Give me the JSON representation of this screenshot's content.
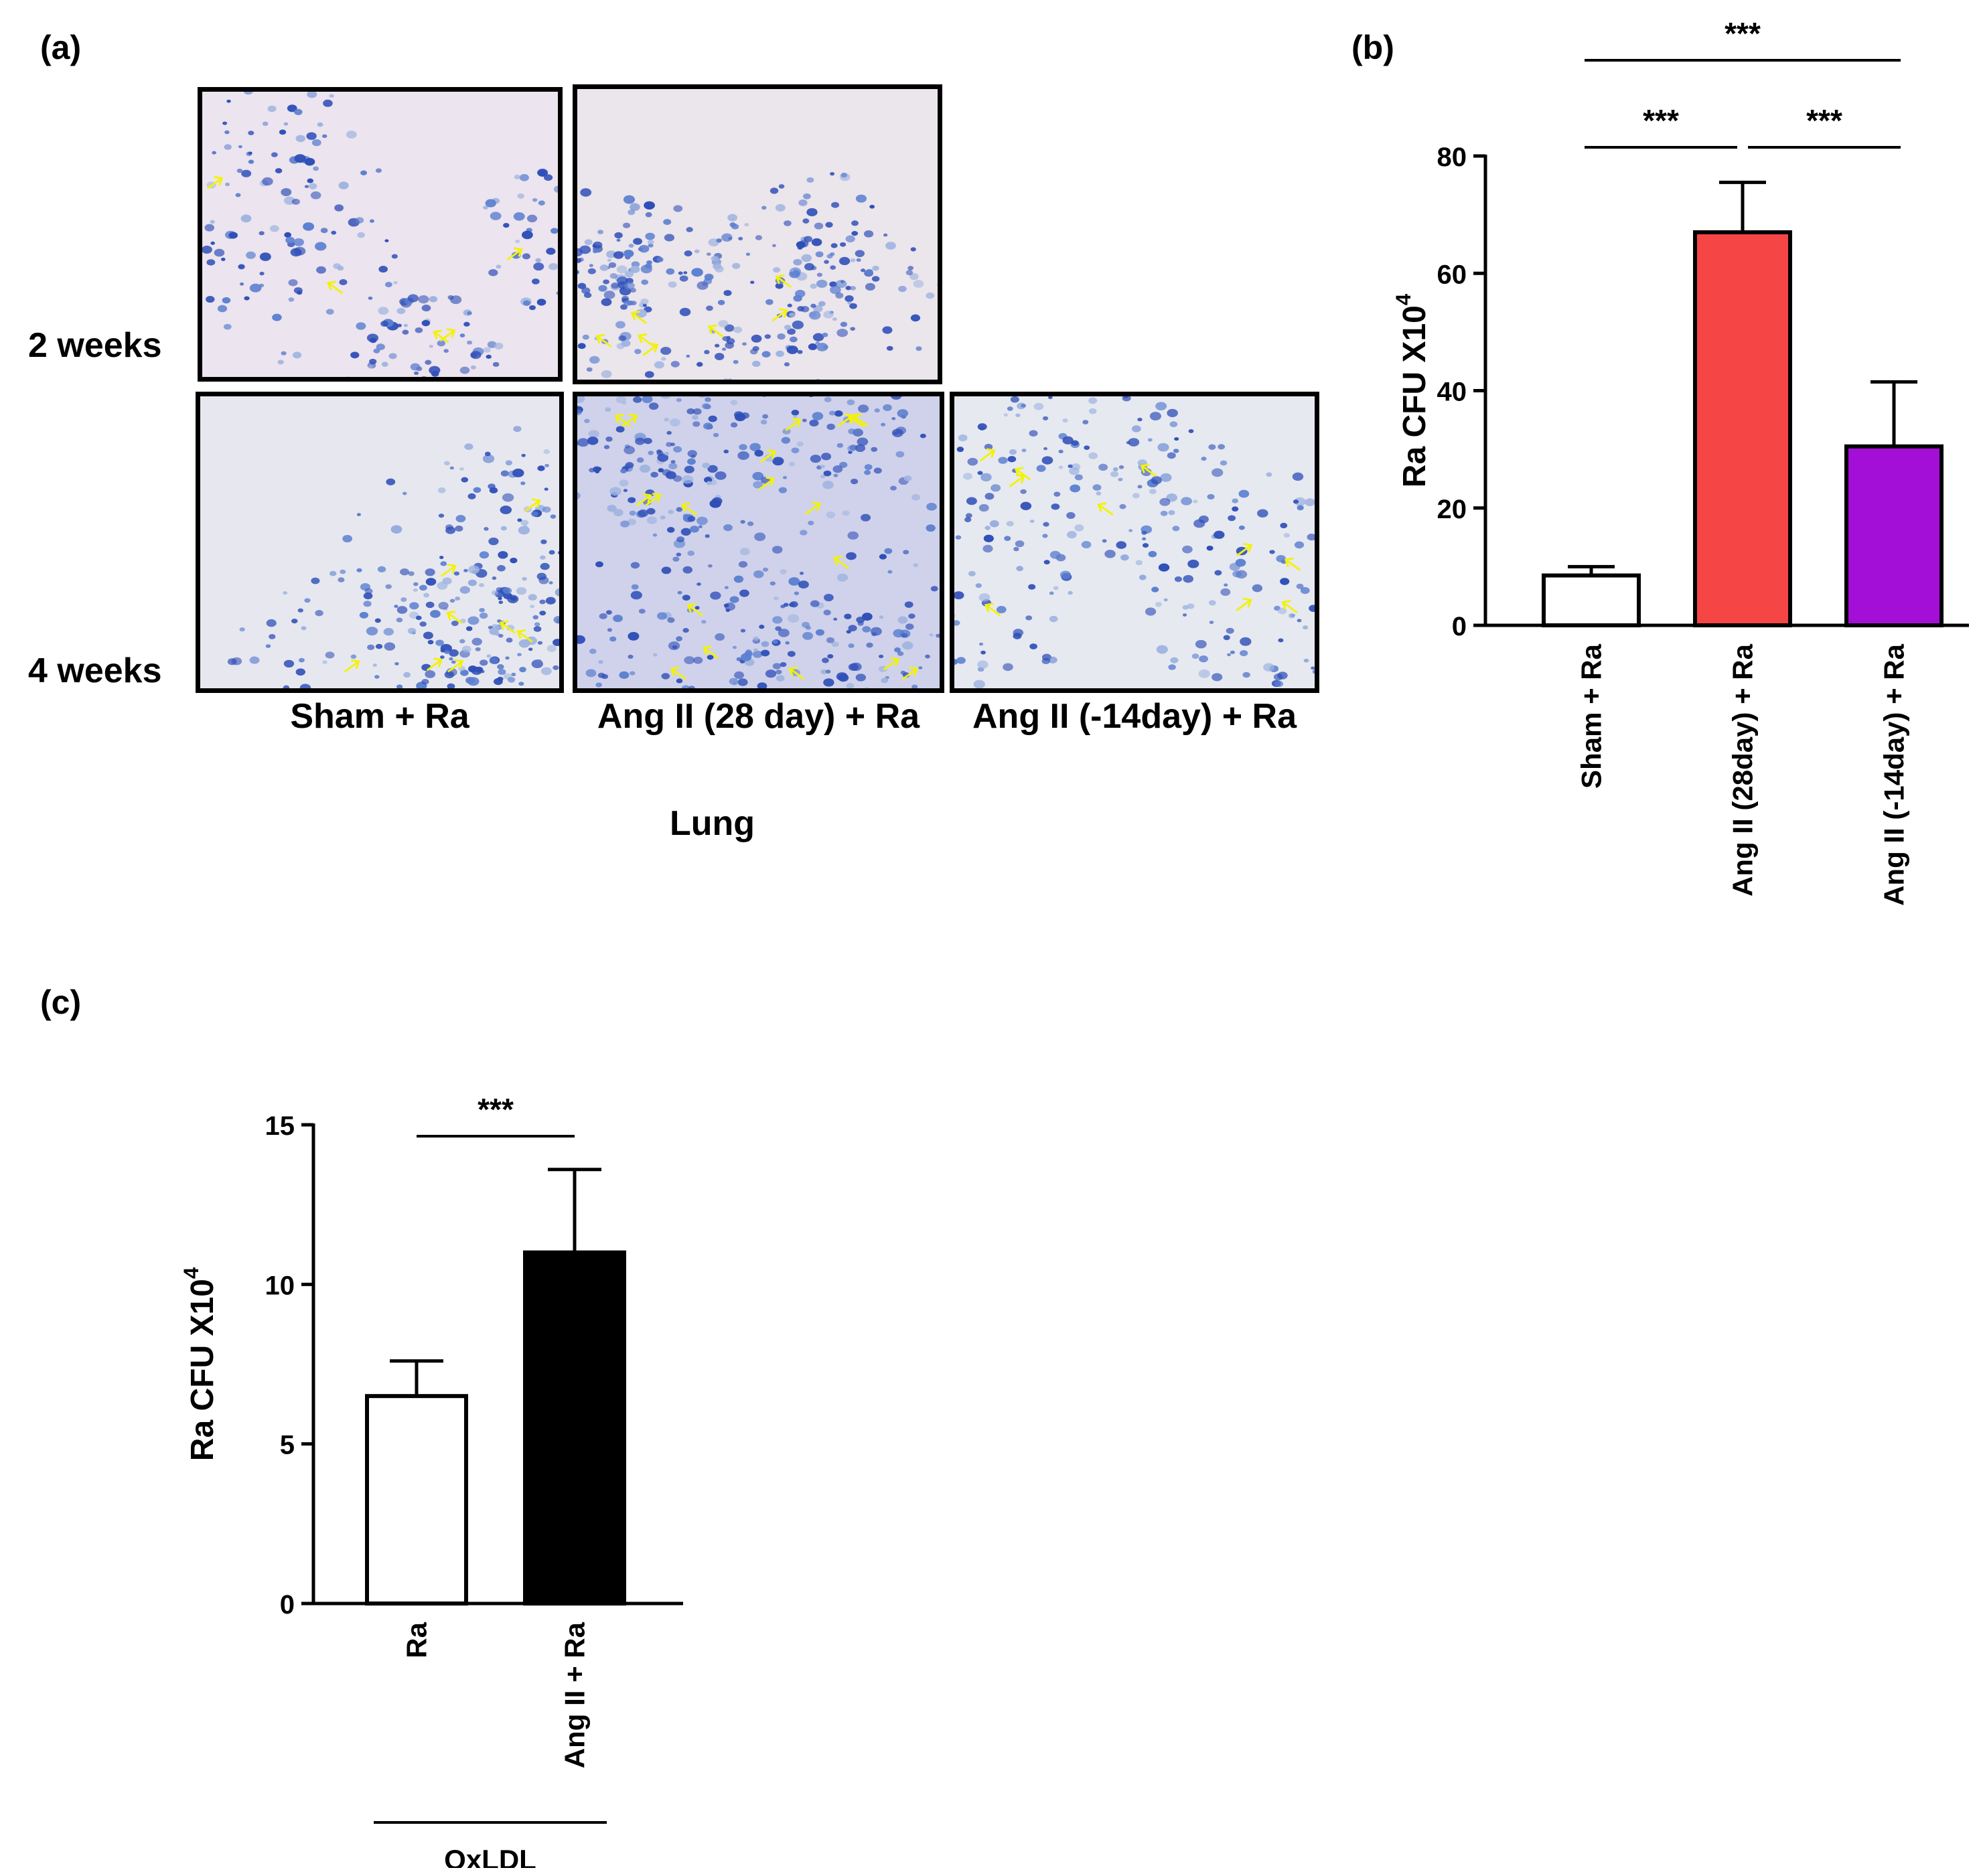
{
  "panel_a": {
    "label": "(a)",
    "row_labels": [
      "2 weeks",
      "4 weeks"
    ],
    "column_labels": [
      "Sham + Ra",
      "Ang II (28 day) + Ra",
      "Ang II (-14day) + Ra"
    ],
    "tissue_label": "Lung",
    "colors": {
      "stain": "#2f4fb8",
      "arrow": "#f2f20a",
      "background": "#e6e1ec"
    }
  },
  "panel_b": {
    "label": "(b)"
  },
  "panel_c": {
    "label": "(c)"
  },
  "chart_data": [
    {
      "id": "b",
      "type": "bar",
      "title": "",
      "xlabel": "",
      "ylabel": "Ra CFU X10",
      "ylabel_superscript": "4",
      "ylim": [
        0,
        80
      ],
      "yticks": [
        "0",
        "20",
        "40",
        "60",
        "80"
      ],
      "categories": [
        "Sham + Ra",
        "Ang II (28day) + Ra",
        "Ang II (-14day) + Ra"
      ],
      "values": [
        8.5,
        67,
        30.5
      ],
      "errors": [
        1.5,
        8.5,
        11
      ],
      "bar_colors": [
        "#ffffff",
        "#f64545",
        "#a30fd6"
      ],
      "significance": [
        {
          "from": 0,
          "to": 2,
          "label": "***",
          "level": 2
        },
        {
          "from": 0,
          "to": 1,
          "label": "***",
          "level": 1
        },
        {
          "from": 1,
          "to": 2,
          "label": "***",
          "level": 1
        }
      ]
    },
    {
      "id": "c",
      "type": "bar",
      "title": "",
      "xlabel": "OxLDL",
      "ylabel": "Ra CFU X10",
      "ylabel_superscript": "4",
      "ylim": [
        0,
        15
      ],
      "yticks": [
        "0",
        "5",
        "10",
        "15"
      ],
      "categories": [
        "Ra",
        "Ang II + Ra"
      ],
      "values": [
        6.5,
        11
      ],
      "errors": [
        1.1,
        2.6
      ],
      "bar_colors": [
        "#ffffff",
        "#000000"
      ],
      "significance": [
        {
          "from": 0,
          "to": 1,
          "label": "***",
          "level": 1
        }
      ]
    }
  ]
}
